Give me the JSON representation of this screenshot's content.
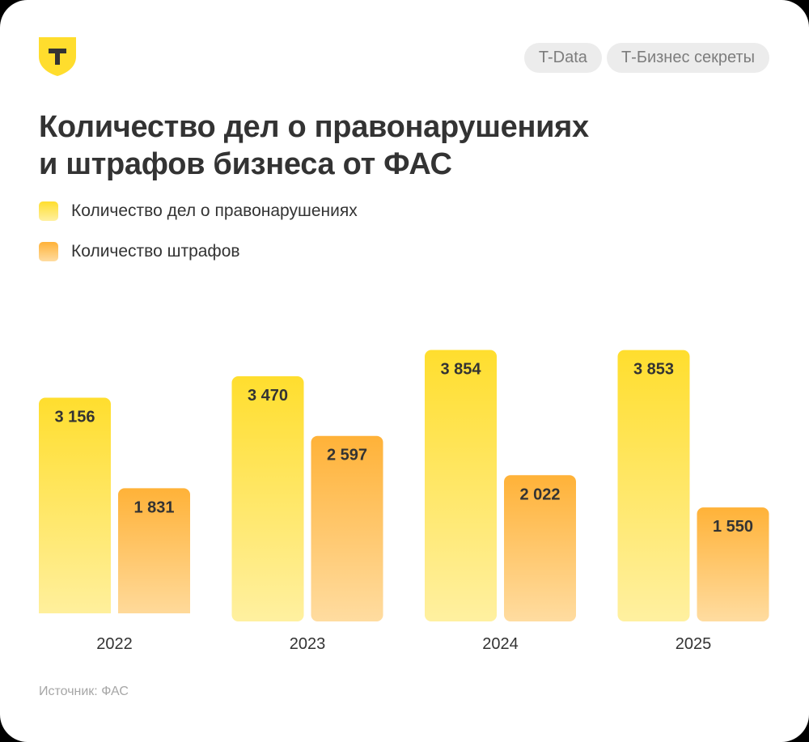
{
  "header": {
    "tags": [
      "T-Data",
      "Т-Бизнес секреты"
    ]
  },
  "title_lines": [
    "Количество дел о правонарушениях",
    "и штрафов бизнеса от ФАС"
  ],
  "source": "Источник: ФАС",
  "colors": {
    "cases_top": "#ffde2e",
    "cases_bottom": "#fff0a0",
    "fines_top": "#ffb238",
    "fines_bottom": "#ffdca0",
    "text": "#333333",
    "logo": "#ffdd2d"
  },
  "chart_data": {
    "type": "bar",
    "categories": [
      "2022",
      "2023",
      "2024",
      "2025"
    ],
    "series": [
      {
        "name": "Количество дел о правонарушениях",
        "values": [
          3156,
          3470,
          3854,
          3853
        ],
        "labels": [
          "3 156",
          "3 470",
          "3 854",
          "3 853"
        ]
      },
      {
        "name": "Количество штрафов",
        "values": [
          1831,
          2597,
          2022,
          1550
        ],
        "labels": [
          "1 831",
          "2 597",
          "2 022",
          "1 550"
        ]
      }
    ],
    "title": "Количество дел о правонарушениях и штрафов бизнеса от ФАС",
    "xlabel": "",
    "ylabel": "",
    "ylim": [
      0,
      4950
    ],
    "grid": false,
    "legend": "top-left",
    "data_labels": true
  }
}
